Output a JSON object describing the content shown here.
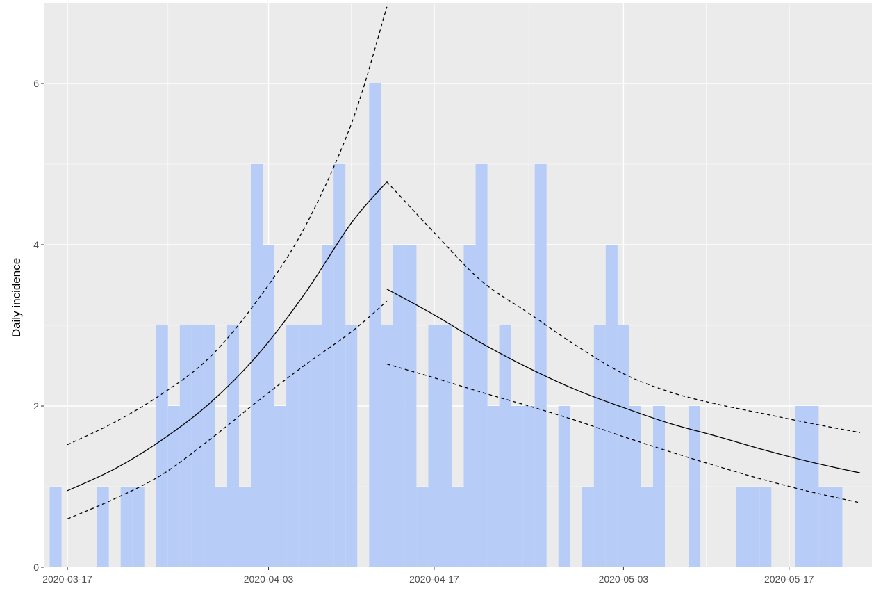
{
  "chart_data": {
    "type": "bar",
    "title": "",
    "xlabel": "",
    "ylabel": "Daily incidence",
    "x_ticks": [
      "2020-03-17",
      "2020-04-03",
      "2020-04-17",
      "2020-05-03",
      "2020-05-17"
    ],
    "y_ticks": [
      0,
      2,
      4,
      6
    ],
    "xlim": [
      "2020-03-15",
      "2020-05-24"
    ],
    "ylim": [
      0,
      7
    ],
    "grid": true,
    "bar_color": "#b7cdf7",
    "panel_color": "#ebebeb",
    "grid_color": "#ffffff",
    "x": [
      "2020-03-16",
      "2020-03-17",
      "2020-03-18",
      "2020-03-19",
      "2020-03-20",
      "2020-03-21",
      "2020-03-22",
      "2020-03-23",
      "2020-03-24",
      "2020-03-25",
      "2020-03-26",
      "2020-03-27",
      "2020-03-28",
      "2020-03-29",
      "2020-03-30",
      "2020-03-31",
      "2020-04-01",
      "2020-04-02",
      "2020-04-03",
      "2020-04-04",
      "2020-04-05",
      "2020-04-06",
      "2020-04-07",
      "2020-04-08",
      "2020-04-09",
      "2020-04-10",
      "2020-04-11",
      "2020-04-12",
      "2020-04-13",
      "2020-04-14",
      "2020-04-15",
      "2020-04-16",
      "2020-04-17",
      "2020-04-18",
      "2020-04-19",
      "2020-04-20",
      "2020-04-21",
      "2020-04-22",
      "2020-04-23",
      "2020-04-24",
      "2020-04-25",
      "2020-04-26",
      "2020-04-27",
      "2020-04-28",
      "2020-04-29",
      "2020-04-30",
      "2020-05-01",
      "2020-05-02",
      "2020-05-03",
      "2020-05-04",
      "2020-05-05",
      "2020-05-06",
      "2020-05-07",
      "2020-05-08",
      "2020-05-09",
      "2020-05-10",
      "2020-05-11",
      "2020-05-12",
      "2020-05-13",
      "2020-05-14",
      "2020-05-15",
      "2020-05-16",
      "2020-05-17",
      "2020-05-18",
      "2020-05-19",
      "2020-05-20",
      "2020-05-21",
      "2020-05-22"
    ],
    "values": [
      1,
      0,
      0,
      0,
      1,
      0,
      1,
      1,
      0,
      3,
      2,
      3,
      3,
      3,
      1,
      3,
      1,
      5,
      4,
      2,
      3,
      3,
      3,
      4,
      5,
      3,
      0,
      6,
      3,
      4,
      4,
      1,
      3,
      3,
      1,
      4,
      5,
      2,
      3,
      2,
      2,
      5,
      0,
      2,
      0,
      1,
      3,
      4,
      3,
      2,
      1,
      2,
      0,
      0,
      2,
      0,
      0,
      0,
      1,
      1,
      1,
      0,
      0,
      2,
      2,
      1,
      1,
      0
    ],
    "series": [
      {
        "style": "solid",
        "segments": [
          [
            [
              "2020-03-17",
              0.95
            ],
            [
              "2020-03-21",
              1.22
            ],
            [
              "2020-03-25",
              1.58
            ],
            [
              "2020-03-29",
              2.03
            ],
            [
              "2020-04-02",
              2.62
            ],
            [
              "2020-04-06",
              3.38
            ],
            [
              "2020-04-10",
              4.27
            ],
            [
              "2020-04-13",
              4.78
            ]
          ],
          [
            [
              "2020-04-13",
              3.45
            ],
            [
              "2020-04-17",
              3.13
            ],
            [
              "2020-04-21",
              2.78
            ],
            [
              "2020-04-25",
              2.47
            ],
            [
              "2020-04-29",
              2.2
            ],
            [
              "2020-05-03",
              1.98
            ],
            [
              "2020-05-07",
              1.78
            ],
            [
              "2020-05-11",
              1.62
            ],
            [
              "2020-05-15",
              1.45
            ],
            [
              "2020-05-19",
              1.3
            ],
            [
              "2020-05-23",
              1.17
            ]
          ]
        ]
      },
      {
        "style": "dashed",
        "segments": [
          [
            [
              "2020-03-17",
              1.52
            ],
            [
              "2020-03-21",
              1.8
            ],
            [
              "2020-03-25",
              2.15
            ],
            [
              "2020-03-29",
              2.6
            ],
            [
              "2020-04-02",
              3.3
            ],
            [
              "2020-04-06",
              4.2
            ],
            [
              "2020-04-10",
              5.5
            ],
            [
              "2020-04-13",
              6.95
            ]
          ],
          [
            [
              "2020-04-13",
              4.78
            ],
            [
              "2020-04-17",
              4.15
            ],
            [
              "2020-04-21",
              3.55
            ],
            [
              "2020-04-25",
              3.15
            ],
            [
              "2020-04-29",
              2.75
            ],
            [
              "2020-05-03",
              2.4
            ],
            [
              "2020-05-07",
              2.17
            ],
            [
              "2020-05-11",
              2.02
            ],
            [
              "2020-05-15",
              1.9
            ],
            [
              "2020-05-19",
              1.78
            ],
            [
              "2020-05-23",
              1.67
            ]
          ]
        ]
      },
      {
        "style": "dashed",
        "segments": [
          [
            [
              "2020-03-17",
              0.6
            ],
            [
              "2020-03-21",
              0.85
            ],
            [
              "2020-03-25",
              1.15
            ],
            [
              "2020-03-29",
              1.58
            ],
            [
              "2020-04-02",
              2.05
            ],
            [
              "2020-04-06",
              2.5
            ],
            [
              "2020-04-10",
              2.92
            ],
            [
              "2020-04-13",
              3.3
            ]
          ],
          [
            [
              "2020-04-13",
              2.52
            ],
            [
              "2020-04-17",
              2.35
            ],
            [
              "2020-04-21",
              2.17
            ],
            [
              "2020-04-25",
              2.0
            ],
            [
              "2020-04-29",
              1.82
            ],
            [
              "2020-05-03",
              1.62
            ],
            [
              "2020-05-07",
              1.43
            ],
            [
              "2020-05-11",
              1.25
            ],
            [
              "2020-05-15",
              1.08
            ],
            [
              "2020-05-19",
              0.93
            ],
            [
              "2020-05-23",
              0.8
            ]
          ]
        ]
      }
    ]
  }
}
